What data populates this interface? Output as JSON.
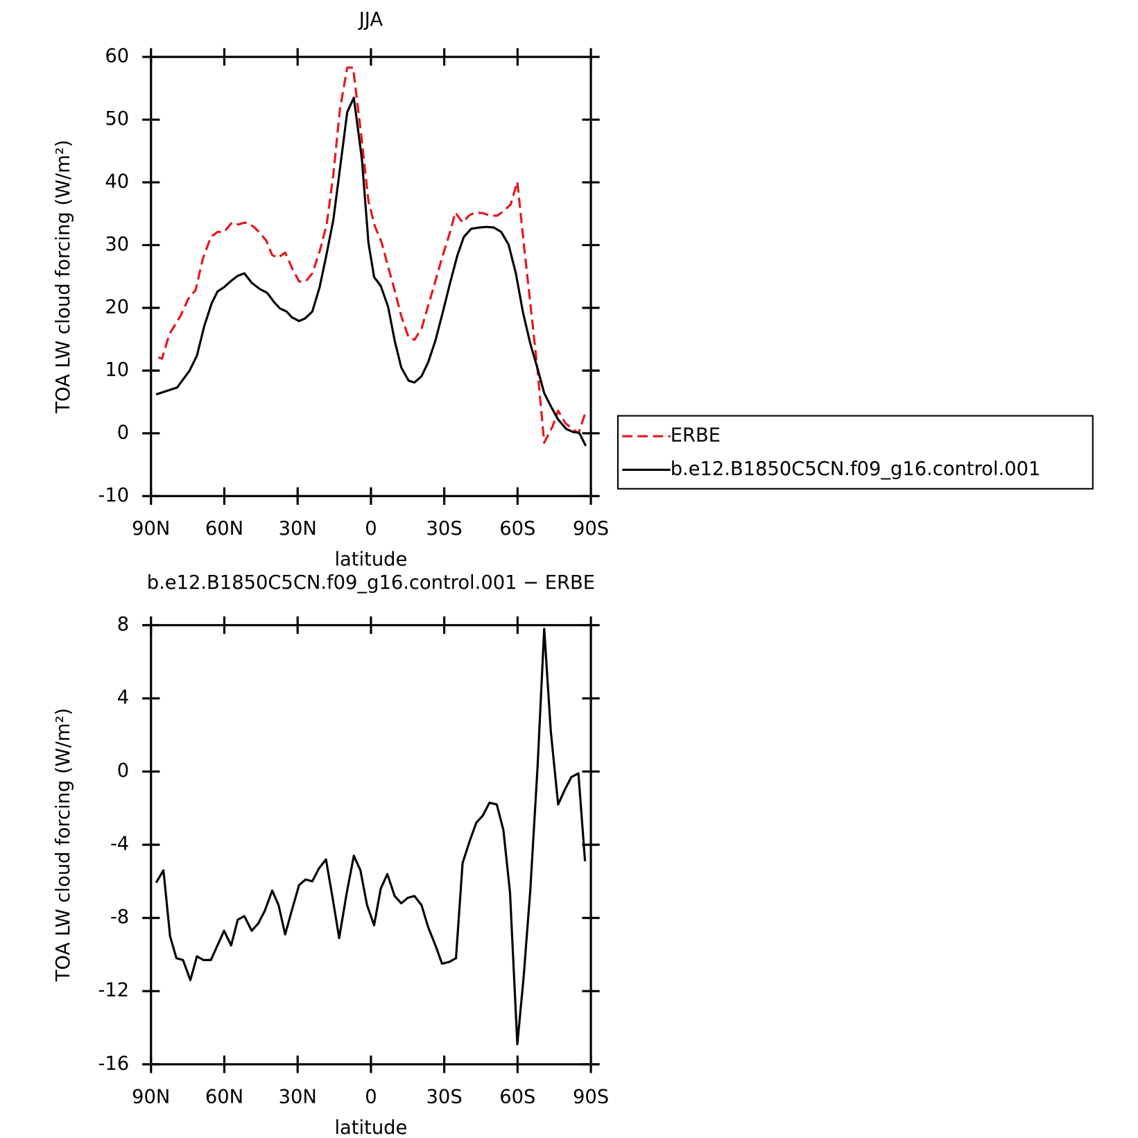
{
  "chart_data": [
    {
      "type": "line",
      "title": "JJA",
      "x_label": "latitude",
      "y_label": "TOA LW cloud forcing (W/m²)",
      "xlim": [
        90,
        -90
      ],
      "xticks": [
        {
          "value": 90,
          "label": "90N"
        },
        {
          "value": 60,
          "label": "60N"
        },
        {
          "value": 30,
          "label": "30N"
        },
        0,
        {
          "value": -30,
          "label": "30S"
        },
        {
          "value": -60,
          "label": "60S"
        },
        {
          "value": -90,
          "label": "90S"
        }
      ],
      "ylim": [
        -10,
        60
      ],
      "yticks": [
        -10,
        0,
        10,
        20,
        30,
        40,
        50,
        60
      ],
      "legend": "outside-right",
      "series": [
        {
          "name": "ERBE",
          "color": "#e8141b",
          "linestyle": "dashed",
          "x": [
            87,
            85.5,
            82.5,
            77.8,
            74.8,
            71.8,
            68.8,
            65.5,
            62.8,
            60.1,
            56.9,
            54.2,
            51.5,
            48.2,
            45.8,
            42.8,
            40.4,
            38.1,
            35.1,
            32.1,
            29.4,
            26.7,
            24,
            21,
            18.1,
            15.4,
            12.7,
            9.7,
            7.3,
            4,
            1,
            -1.6,
            -4.3,
            -7,
            -9.7,
            -12.4,
            -15.4,
            -17.8,
            -20.7,
            -23.7,
            -26.4,
            -29.4,
            -32.4,
            -34.5,
            -37.5,
            -40.4,
            -42.8,
            -45.8,
            -48.8,
            -51.8,
            -54.8,
            -57.2,
            -59.9,
            -62.8,
            -65.5,
            -68.2,
            -70.9,
            -74.2,
            -76.6,
            -79.6,
            -82.2,
            -84.9,
            -87.6
          ],
          "values": [
            12.1,
            11.9,
            15.8,
            18.8,
            21.4,
            22.8,
            27.8,
            31.3,
            32.1,
            32.1,
            33.6,
            33.3,
            33.6,
            33,
            32.1,
            30.7,
            28.4,
            28,
            28.8,
            26.2,
            24.2,
            24.2,
            25.5,
            29,
            33.3,
            41.2,
            51.6,
            58.3,
            58.3,
            47.6,
            37,
            33,
            30.5,
            26.6,
            22.8,
            18.7,
            15.3,
            14.9,
            16.7,
            20.7,
            24.3,
            28.4,
            32.1,
            35.2,
            33.6,
            34.8,
            35.2,
            35.1,
            34.7,
            34.7,
            35.6,
            36.5,
            40.1,
            29.3,
            19.7,
            10,
            -1.5,
            1,
            3.6,
            1.6,
            0.8,
            0,
            3.1
          ]
        },
        {
          "name": "b.e12.B1850C5CN.f09_g16.control.001",
          "color": "#000000",
          "linestyle": "solid",
          "x": [
            87.9,
            79.3,
            74.2,
            71.2,
            68.2,
            65.2,
            62.8,
            60.1,
            56.9,
            54.5,
            51.8,
            48.8,
            45.5,
            42.5,
            39.6,
            37.2,
            34.5,
            32.4,
            29.4,
            27,
            24,
            21,
            18.4,
            15.4,
            12.7,
            9.7,
            7,
            3.7,
            1,
            -1.3,
            -4,
            -7,
            -9.7,
            -12.4,
            -15.4,
            -17.8,
            -20.7,
            -23.4,
            -26.4,
            -29.4,
            -32.4,
            -35.4,
            -38,
            -41,
            -44.3,
            -47.3,
            -50.3,
            -53.3,
            -56.3,
            -59.3,
            -62.2,
            -65.2,
            -68.2,
            -70.9,
            -73.9,
            -76.6,
            -79.9,
            -82.8,
            -85.2,
            -87.9
          ],
          "values": [
            6.2,
            7.3,
            10,
            12.4,
            17.1,
            20.7,
            22.6,
            23.3,
            24.4,
            25.1,
            25.5,
            24,
            23,
            22.4,
            20.9,
            19.9,
            19.4,
            18.5,
            17.9,
            18.3,
            19.4,
            23.3,
            28.1,
            34,
            42.1,
            51.2,
            53.5,
            43.7,
            30.3,
            24.9,
            23.5,
            20.2,
            14.8,
            10.5,
            8.4,
            8.1,
            9.1,
            11.3,
            14.8,
            19.3,
            24,
            28.4,
            31.3,
            32.6,
            32.8,
            32.9,
            32.8,
            32.1,
            30.1,
            25.5,
            19.3,
            14.3,
            10.3,
            6.4,
            4.1,
            2.2,
            0.7,
            0.2,
            0.1,
            -2
          ]
        }
      ]
    },
    {
      "type": "line",
      "title": "b.e12.B1850C5CN.f09_g16.control.001 − ERBE",
      "x_label": "latitude",
      "y_label": "TOA LW cloud forcing (W/m²)",
      "xlim": [
        90,
        -90
      ],
      "xticks": [
        {
          "value": 90,
          "label": "90N"
        },
        {
          "value": 60,
          "label": "60N"
        },
        {
          "value": 30,
          "label": "30N"
        },
        0,
        {
          "value": -30,
          "label": "30S"
        },
        {
          "value": -60,
          "label": "60S"
        },
        {
          "value": -90,
          "label": "90S"
        }
      ],
      "ylim": [
        -16,
        8
      ],
      "yticks": [
        -16,
        -12,
        -8,
        -4,
        0,
        4,
        8
      ],
      "series": [
        {
          "color": "#000000",
          "linestyle": "solid",
          "x": [
            87.9,
            84.9,
            82.2,
            79.6,
            76.9,
            73.9,
            71.2,
            68.5,
            65.5,
            62.8,
            60.1,
            57.2,
            54.5,
            51.8,
            48.8,
            46.1,
            43.4,
            40.4,
            37.8,
            35.1,
            32.4,
            29.4,
            26.7,
            24,
            21.3,
            18.4,
            15.7,
            13,
            10,
            7,
            4.3,
            1.6,
            -1.3,
            -4,
            -6.7,
            -9.7,
            -12.4,
            -15.1,
            -17.8,
            -20.7,
            -23.4,
            -26.4,
            -29.1,
            -32.1,
            -34.8,
            -37.5,
            -40.4,
            -43.1,
            -45.8,
            -48.5,
            -51.5,
            -54.2,
            -56.9,
            -59.9,
            -62.5,
            -65.2,
            -68.2,
            -70.9,
            -73.6,
            -76.6,
            -79.3,
            -82,
            -84.9,
            -87.6
          ],
          "values": [
            -6.07,
            -5.4,
            -9,
            -10.2,
            -10.3,
            -11.4,
            -10.1,
            -10.3,
            -10.3,
            -9.5,
            -8.7,
            -9.5,
            -8.1,
            -7.9,
            -8.7,
            -8.3,
            -7.6,
            -6.5,
            -7.3,
            -8.9,
            -7.6,
            -6.2,
            -5.9,
            -6,
            -5.3,
            -4.8,
            -6.9,
            -9.1,
            -6.7,
            -4.6,
            -5.4,
            -7.3,
            -8.4,
            -6.4,
            -5.6,
            -6.8,
            -7.2,
            -6.9,
            -6.8,
            -7.3,
            -8.5,
            -9.5,
            -10.5,
            -10.4,
            -10.2,
            -5,
            -3.8,
            -2.8,
            -2.4,
            -1.7,
            -1.8,
            -3.2,
            -6.6,
            -14.9,
            -11.2,
            -6.5,
            0.3,
            7.8,
            2.2,
            -1.8,
            -1,
            -0.3,
            -0.1,
            -4.9
          ]
        }
      ]
    }
  ]
}
